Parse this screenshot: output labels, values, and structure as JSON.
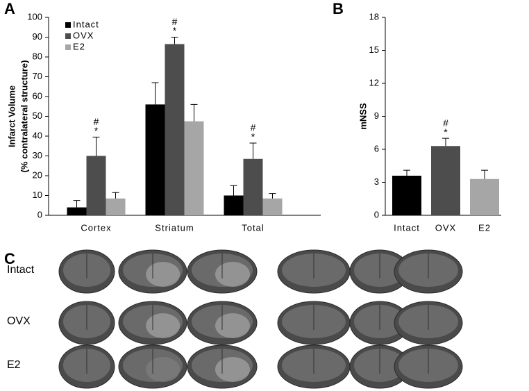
{
  "chart_data": [
    {
      "type": "bar",
      "panel_label": "A",
      "ylabel": [
        "Infarct Volume",
        "(% contralateral  structure)"
      ],
      "categories": [
        "Cortex",
        "Striatum",
        "Total"
      ],
      "series": [
        {
          "name": "Intact",
          "color": "#000000",
          "values": [
            4,
            56,
            10
          ],
          "errors": [
            3.5,
            11,
            5
          ]
        },
        {
          "name": "OVX",
          "color": "#4d4d4d",
          "values": [
            30,
            86.5,
            28.5
          ],
          "errors": [
            9.5,
            3.5,
            8
          ],
          "annotations": [
            [
              "#",
              "*"
            ],
            [
              "#",
              "*"
            ],
            [
              "#",
              "*"
            ]
          ]
        },
        {
          "name": "E2",
          "color": "#a6a6a6",
          "values": [
            8.5,
            47.5,
            8.5
          ],
          "errors": [
            3,
            8.5,
            2.5
          ]
        }
      ],
      "ylim": [
        0,
        100
      ],
      "yticks": [
        0,
        10,
        20,
        30,
        40,
        50,
        60,
        70,
        80,
        90,
        100
      ],
      "legend": "upper left",
      "grid": false
    },
    {
      "type": "bar",
      "panel_label": "B",
      "ylabel": [
        "mNSS"
      ],
      "categories": [
        "Intact",
        "OVX",
        "E2"
      ],
      "values": [
        3.6,
        6.3,
        3.3
      ],
      "errors": [
        0.5,
        0.7,
        0.8
      ],
      "colors": [
        "#000000",
        "#4d4d4d",
        "#a6a6a6"
      ],
      "annotations": [
        null,
        [
          "#",
          "*"
        ],
        null
      ],
      "ylim": [
        0,
        18
      ],
      "yticks": [
        0,
        3,
        6,
        9,
        12,
        15,
        18
      ],
      "grid": false
    }
  ],
  "image_panel": {
    "panel_label": "C",
    "rows": [
      "Intact",
      "OVX",
      "E2"
    ]
  }
}
